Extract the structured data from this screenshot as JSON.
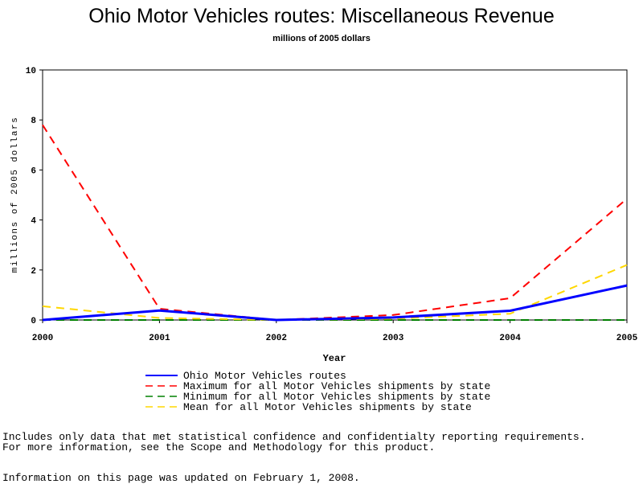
{
  "chart_data": {
    "type": "line",
    "title": "Ohio Motor Vehicles routes: Miscellaneous Revenue",
    "subtitle": "millions of 2005 dollars",
    "xlabel": "Year",
    "ylabel": "millions of 2005 dollars",
    "x": [
      2000,
      2001,
      2002,
      2003,
      2004,
      2005
    ],
    "xlim": [
      2000,
      2005
    ],
    "ylim": [
      0,
      10
    ],
    "yticks": [
      0,
      2,
      4,
      6,
      8,
      10
    ],
    "grid": false,
    "legend_position": "bottom",
    "series": [
      {
        "name": "Ohio Motor Vehicles routes",
        "color": "#0000ff",
        "style": "solid",
        "values": [
          0.0,
          0.38,
          0.0,
          0.1,
          0.37,
          1.38
        ]
      },
      {
        "name": "Maximum for all Motor Vehicles shipments by state",
        "color": "#ff0000",
        "style": "dashed",
        "values": [
          7.8,
          0.45,
          0.0,
          0.2,
          0.87,
          4.85
        ]
      },
      {
        "name": "Minimum for all Motor Vehicles shipments by state",
        "color": "#008000",
        "style": "dashed",
        "values": [
          0.0,
          0.0,
          0.0,
          0.0,
          0.0,
          0.0
        ]
      },
      {
        "name": "Mean for all Motor Vehicles shipments by state",
        "color": "#ffd700",
        "style": "dashed",
        "values": [
          0.55,
          0.08,
          0.0,
          0.05,
          0.25,
          2.2
        ]
      }
    ]
  },
  "footnotes": {
    "line1": "Includes only data that met statistical confidence and confidentialty reporting requirements.",
    "line2": "For more information, see the Scope and Methodology for this product.",
    "line3": "Information on this page was updated on February 1, 2008."
  }
}
